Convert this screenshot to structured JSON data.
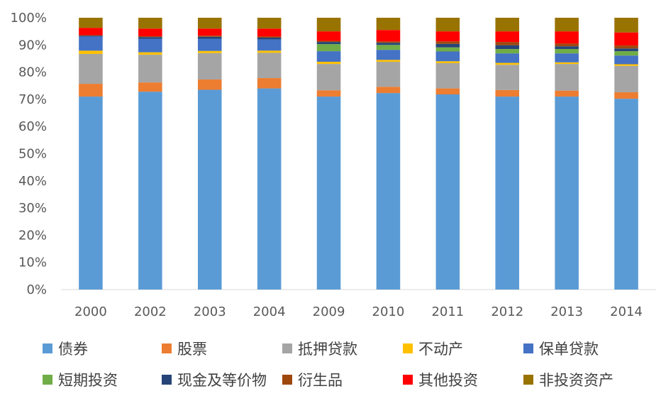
{
  "chart_data": {
    "type": "bar",
    "stacked": true,
    "title": "",
    "xlabel": "",
    "ylabel": "",
    "ylim": [
      0,
      100
    ],
    "ytick_step": 10,
    "ytick_suffix": "%",
    "grid": false,
    "legend_position": "bottom",
    "categories": [
      "2000",
      "2002",
      "2003",
      "2004",
      "2009",
      "2010",
      "2011",
      "2012",
      "2013",
      "2014"
    ],
    "series": [
      {
        "name": "债券",
        "color": "#5B9BD5",
        "values": [
          71.0,
          72.8,
          73.5,
          74.0,
          71.0,
          72.3,
          71.8,
          71.0,
          71.0,
          70.2
        ]
      },
      {
        "name": "股票",
        "color": "#ED7D31",
        "values": [
          4.7,
          3.4,
          3.8,
          3.8,
          2.3,
          2.3,
          2.2,
          2.4,
          2.2,
          2.4
        ]
      },
      {
        "name": "抵押贷款",
        "color": "#A5A5A5",
        "values": [
          11.0,
          10.2,
          9.7,
          9.3,
          9.7,
          9.2,
          9.3,
          9.3,
          9.8,
          9.7
        ]
      },
      {
        "name": "不动产",
        "color": "#FFC000",
        "values": [
          1.2,
          0.9,
          0.8,
          0.8,
          0.8,
          0.7,
          0.7,
          0.7,
          0.6,
          0.6
        ]
      },
      {
        "name": "保单贷款",
        "color": "#4472C4",
        "values": [
          5.2,
          5.0,
          4.5,
          4.1,
          3.9,
          3.7,
          3.6,
          3.5,
          3.3,
          3.2
        ]
      },
      {
        "name": "短期投资",
        "color": "#70AD47",
        "values": [
          0.0,
          0.0,
          0.0,
          0.0,
          2.6,
          1.8,
          1.5,
          1.6,
          1.6,
          1.6
        ]
      },
      {
        "name": "现金及等价物",
        "color": "#264478",
        "values": [
          0.3,
          0.6,
          0.7,
          0.7,
          0.8,
          0.8,
          1.3,
          1.4,
          1.0,
          1.0
        ]
      },
      {
        "name": "衍生品",
        "color": "#9E480E",
        "values": [
          0.2,
          0.3,
          0.4,
          0.4,
          0.4,
          0.5,
          0.9,
          1.2,
          1.0,
          1.1
        ]
      },
      {
        "name": "其他投资",
        "color": "#FF0000",
        "values": [
          2.7,
          2.8,
          2.6,
          2.9,
          3.5,
          4.2,
          3.7,
          3.9,
          4.5,
          4.8
        ]
      },
      {
        "name": "非投资资产",
        "color": "#997300",
        "values": [
          3.7,
          4.0,
          4.0,
          4.0,
          5.0,
          4.5,
          5.0,
          5.0,
          5.0,
          5.4
        ]
      }
    ]
  }
}
